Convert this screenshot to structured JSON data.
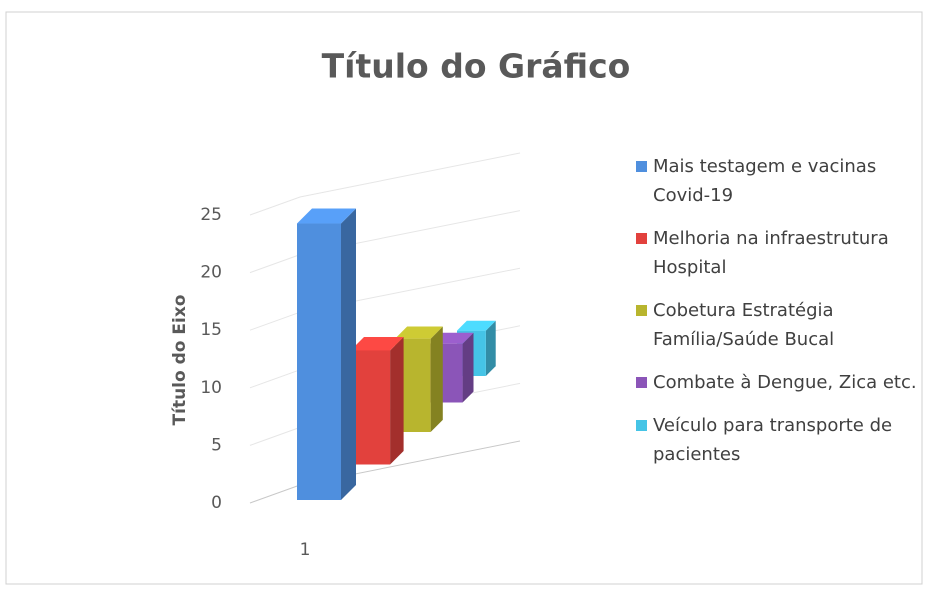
{
  "chart_data": {
    "type": "bar3d",
    "title": "Título do Gráfico",
    "y_label": "Título do Eixo",
    "categories": [
      "1"
    ],
    "series": [
      {
        "name": "Mais testagem e vacinas Covid-19",
        "color": "#4f8fde",
        "values": [
          24
        ]
      },
      {
        "name": "Melhoria na infraestrutura Hospital",
        "color": "#e2413d",
        "values": [
          11
        ]
      },
      {
        "name": "Cobetura Estratégia Família/Saúde Bucal",
        "color": "#b8b52e",
        "values": [
          10
        ]
      },
      {
        "name": "Combate à Dengue, Zica etc.",
        "color": "#8b55b8",
        "values": [
          7
        ]
      },
      {
        "name": "Veículo para transporte de pacientes",
        "color": "#45c4e6",
        "values": [
          6
        ]
      }
    ],
    "ylim": [
      0,
      25
    ],
    "yticks": [
      0,
      5,
      10,
      15,
      20,
      25
    ],
    "grid": true,
    "legend": "right"
  }
}
